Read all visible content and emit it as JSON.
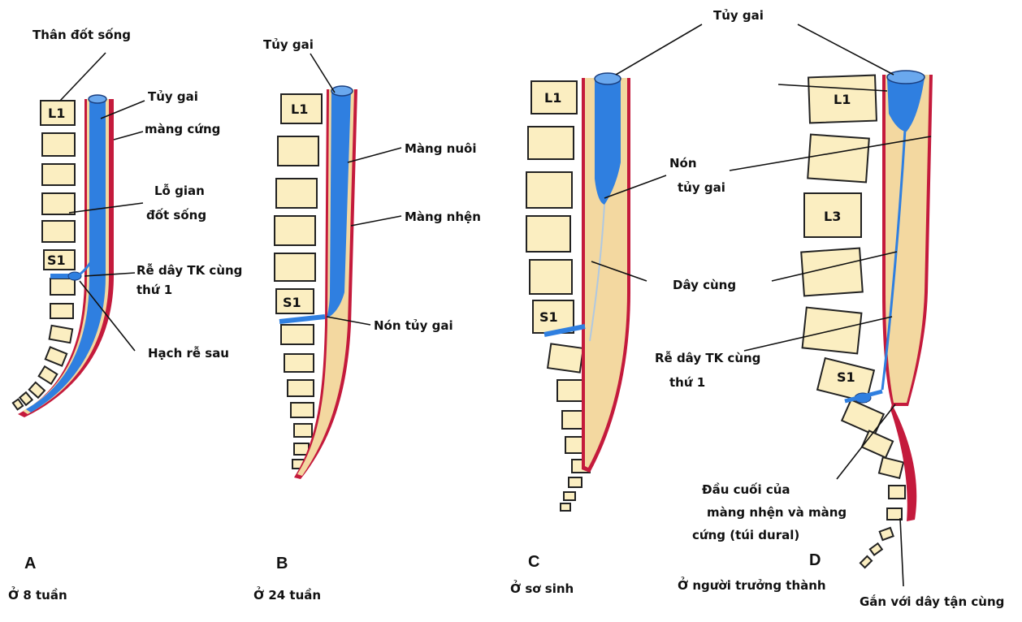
{
  "colors": {
    "cord": "#2f7fe0",
    "dura": "#c41a3c",
    "csf": "#f3d8a0",
    "vertebra": "#fbeec1",
    "background": "#ffffff"
  },
  "panels": [
    {
      "letter": "A",
      "age": "Ở 8 tuần",
      "labels": {
        "than_dot_song": "Thân đốt sống",
        "tuy_gai": "Tủy gai",
        "mang_cung": "màng cứng",
        "lo_gian_1": "Lỗ gian",
        "lo_gian_2": "đốt sống",
        "re_day_1": "Rễ dây TK cùng",
        "re_day_2": "thứ 1",
        "hach_re_sau": "Hạch rễ sau"
      },
      "vertebrae": {
        "l1": "L1",
        "s1": "S1"
      }
    },
    {
      "letter": "B",
      "age": "Ở 24 tuần",
      "labels": {
        "tuy_gai": "Tủy gai",
        "mang_nuoi": "Màng nuôi",
        "mang_nhen": "Màng nhện",
        "non_tuy_gai": "Nón tủy gai"
      },
      "vertebrae": {
        "l1": "L1",
        "s1": "S1"
      }
    },
    {
      "letter": "C",
      "age": "Ở sơ sinh",
      "labels": {
        "non_1": "Nón",
        "non_2": "tủy gai",
        "day_cung": "Dây cùng"
      },
      "vertebrae": {
        "l1": "L1",
        "s1": "S1"
      }
    },
    {
      "letter": "D",
      "age": "Ở người trưởng thành",
      "labels": {
        "tuy_gai": "Tủy gai",
        "re_day_1": "Rễ dây TK cùng",
        "re_day_2": "thứ 1",
        "dau_cuoi_1": "Đầu cuối của",
        "dau_cuoi_2": "màng nhện và màng",
        "dau_cuoi_3": "cứng (túi dural)",
        "gan_voi": "Gắn với dây tận cùng"
      },
      "vertebrae": {
        "l1": "L1",
        "l3": "L3",
        "s1": "S1"
      }
    }
  ]
}
